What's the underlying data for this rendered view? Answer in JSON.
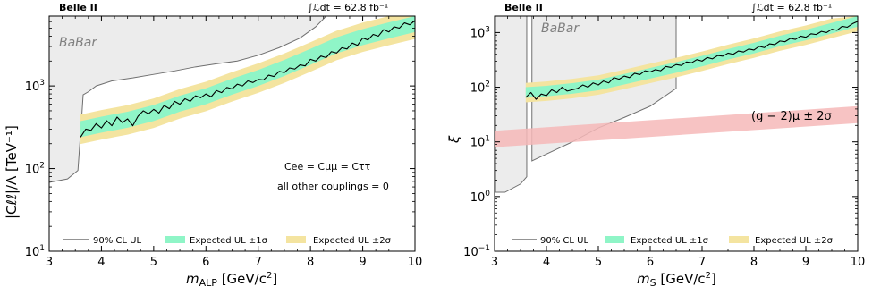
{
  "chart_data": [
    {
      "type": "line",
      "experiment": "Belle II",
      "luminosity_label": "∫ℒdt = 62.8 fb⁻¹",
      "xlabel": "m_ALP [GeV/c²]",
      "xlabel_main": "m",
      "xlabel_sub": "ALP",
      "xlabel_unit": " [GeV/c",
      "xlabel_unit_sup": "2",
      "xlabel_unit_close": "]",
      "ylabel": "|C_ℓℓ|/Λ [TeV⁻¹]",
      "ylabel_display": "|Cℓℓ|/Λ [TeV⁻¹]",
      "xlim": [
        3,
        10
      ],
      "ylim": [
        10,
        7000
      ],
      "yscale": "log",
      "x_ticks": [
        "3",
        "4",
        "5",
        "6",
        "7",
        "8",
        "9",
        "10"
      ],
      "y_ticks": [
        {
          "value": 10,
          "base": "10",
          "exp": "1"
        },
        {
          "value": 100,
          "base": "10",
          "exp": "2"
        },
        {
          "value": 1000,
          "base": "10",
          "exp": "3"
        }
      ],
      "annotations": [
        "C_ee = C_μμ = C_ττ",
        "all other couplings = 0"
      ],
      "annotation_display": [
        "Cee = Cμμ = Cττ",
        "all other couplings = 0"
      ],
      "region_label": "BaBar",
      "legend": [
        "90% CL UL",
        "Expected UL ±1σ",
        "Expected UL ±2σ"
      ],
      "babar_boundary": [
        [
          3.0,
          68
        ],
        [
          3.35,
          75
        ],
        [
          3.55,
          95
        ],
        [
          3.62,
          400
        ],
        [
          3.65,
          780
        ],
        [
          3.75,
          850
        ],
        [
          3.9,
          1000
        ],
        [
          4.2,
          1150
        ],
        [
          4.6,
          1250
        ],
        [
          5.0,
          1380
        ],
        [
          5.4,
          1520
        ],
        [
          5.8,
          1700
        ],
        [
          6.2,
          1850
        ],
        [
          6.6,
          2000
        ],
        [
          7.0,
          2350
        ],
        [
          7.4,
          2900
        ],
        [
          7.8,
          3800
        ],
        [
          8.1,
          5200
        ],
        [
          8.3,
          7000
        ]
      ],
      "expected_median": [
        [
          3.6,
          300
        ],
        [
          4.0,
          340
        ],
        [
          4.5,
          390
        ],
        [
          5.0,
          470
        ],
        [
          5.5,
          610
        ],
        [
          6.0,
          750
        ],
        [
          6.5,
          980
        ],
        [
          7.0,
          1250
        ],
        [
          7.5,
          1650
        ],
        [
          8.0,
          2250
        ],
        [
          8.5,
          3100
        ],
        [
          9.0,
          3900
        ],
        [
          9.5,
          4700
        ],
        [
          10.0,
          5600
        ]
      ],
      "observed_ul": [
        [
          3.6,
          240
        ],
        [
          3.7,
          300
        ],
        [
          3.8,
          290
        ],
        [
          3.9,
          350
        ],
        [
          4.0,
          310
        ],
        [
          4.1,
          380
        ],
        [
          4.2,
          330
        ],
        [
          4.3,
          420
        ],
        [
          4.4,
          360
        ],
        [
          4.5,
          400
        ],
        [
          4.6,
          330
        ],
        [
          4.7,
          430
        ],
        [
          4.8,
          500
        ],
        [
          4.9,
          460
        ],
        [
          5.0,
          520
        ],
        [
          5.1,
          470
        ],
        [
          5.2,
          580
        ],
        [
          5.3,
          530
        ],
        [
          5.4,
          650
        ],
        [
          5.5,
          600
        ],
        [
          5.6,
          700
        ],
        [
          5.7,
          650
        ],
        [
          5.8,
          760
        ],
        [
          5.9,
          720
        ],
        [
          6.0,
          800
        ],
        [
          6.1,
          740
        ],
        [
          6.2,
          880
        ],
        [
          6.3,
          830
        ],
        [
          6.4,
          960
        ],
        [
          6.5,
          920
        ],
        [
          6.6,
          1050
        ],
        [
          6.7,
          1000
        ],
        [
          6.8,
          1150
        ],
        [
          6.9,
          1100
        ],
        [
          7.0,
          1200
        ],
        [
          7.1,
          1180
        ],
        [
          7.2,
          1350
        ],
        [
          7.3,
          1300
        ],
        [
          7.4,
          1500
        ],
        [
          7.5,
          1450
        ],
        [
          7.6,
          1650
        ],
        [
          7.7,
          1600
        ],
        [
          7.8,
          1800
        ],
        [
          7.9,
          1750
        ],
        [
          8.0,
          2100
        ],
        [
          8.1,
          2000
        ],
        [
          8.2,
          2300
        ],
        [
          8.3,
          2200
        ],
        [
          8.4,
          2600
        ],
        [
          8.5,
          2500
        ],
        [
          8.6,
          2900
        ],
        [
          8.7,
          2800
        ],
        [
          8.8,
          3300
        ],
        [
          8.9,
          3100
        ],
        [
          9.0,
          3800
        ],
        [
          9.1,
          3600
        ],
        [
          9.2,
          4200
        ],
        [
          9.3,
          4000
        ],
        [
          9.4,
          4800
        ],
        [
          9.5,
          4500
        ],
        [
          9.6,
          5200
        ],
        [
          9.7,
          5000
        ],
        [
          9.8,
          5800
        ],
        [
          9.9,
          5500
        ],
        [
          10.0,
          6200
        ]
      ]
    },
    {
      "type": "line",
      "experiment": "Belle II",
      "luminosity_label": "∫ℒdt = 62.8 fb⁻¹",
      "xlabel": "m_S [GeV/c²]",
      "xlabel_main": "m",
      "xlabel_sub": "S",
      "xlabel_unit": " [GeV/c",
      "xlabel_unit_sup": "2",
      "xlabel_unit_close": "]",
      "ylabel": "ξ",
      "xlim": [
        3,
        10
      ],
      "ylim": [
        0.1,
        2000
      ],
      "yscale": "log",
      "x_ticks": [
        "3",
        "4",
        "5",
        "6",
        "7",
        "8",
        "9",
        "10"
      ],
      "y_ticks": [
        {
          "value": 0.1,
          "base": "10",
          "exp": "−1"
        },
        {
          "value": 1,
          "base": "10",
          "exp": "0"
        },
        {
          "value": 10,
          "base": "10",
          "exp": "1"
        },
        {
          "value": 100,
          "base": "10",
          "exp": "2"
        },
        {
          "value": 1000,
          "base": "10",
          "exp": "3"
        }
      ],
      "region_label": "BaBar",
      "band_label": "(g − 2)μ ± 2σ",
      "legend": [
        "90% CL UL",
        "Expected UL ±1σ",
        "Expected UL ±2σ"
      ],
      "babar_boundary": [
        [
          3.02,
          2000
        ],
        [
          3.02,
          1.2
        ],
        [
          3.2,
          1.2
        ],
        [
          3.5,
          1.7
        ],
        [
          3.62,
          2.3
        ],
        [
          3.62,
          2000
        ],
        [
          3.72,
          2000
        ],
        [
          3.72,
          4.5
        ],
        [
          4.0,
          6
        ],
        [
          4.5,
          10
        ],
        [
          5.0,
          18
        ],
        [
          5.5,
          28
        ],
        [
          6.0,
          45
        ],
        [
          6.5,
          95
        ],
        [
          6.5,
          2000
        ]
      ],
      "gm2_band": {
        "x": [
          3.0,
          10.0
        ],
        "lower": [
          8,
          22
        ],
        "upper": [
          16,
          45
        ]
      },
      "expected_median": [
        [
          3.6,
          80
        ],
        [
          4.0,
          85
        ],
        [
          4.5,
          95
        ],
        [
          5.0,
          110
        ],
        [
          5.5,
          140
        ],
        [
          6.0,
          180
        ],
        [
          6.5,
          230
        ],
        [
          7.0,
          300
        ],
        [
          7.5,
          400
        ],
        [
          8.0,
          520
        ],
        [
          8.5,
          700
        ],
        [
          9.0,
          900
        ],
        [
          9.5,
          1200
        ],
        [
          10.0,
          1600
        ]
      ],
      "observed_ul": [
        [
          3.6,
          65
        ],
        [
          3.7,
          80
        ],
        [
          3.8,
          60
        ],
        [
          3.9,
          75
        ],
        [
          4.0,
          70
        ],
        [
          4.1,
          90
        ],
        [
          4.2,
          80
        ],
        [
          4.3,
          100
        ],
        [
          4.4,
          85
        ],
        [
          4.5,
          90
        ],
        [
          4.6,
          95
        ],
        [
          4.7,
          110
        ],
        [
          4.8,
          100
        ],
        [
          4.9,
          120
        ],
        [
          5.0,
          110
        ],
        [
          5.1,
          130
        ],
        [
          5.2,
          120
        ],
        [
          5.3,
          150
        ],
        [
          5.4,
          140
        ],
        [
          5.5,
          160
        ],
        [
          5.6,
          150
        ],
        [
          5.7,
          180
        ],
        [
          5.8,
          170
        ],
        [
          5.9,
          200
        ],
        [
          6.0,
          190
        ],
        [
          6.1,
          210
        ],
        [
          6.2,
          200
        ],
        [
          6.3,
          240
        ],
        [
          6.4,
          230
        ],
        [
          6.5,
          260
        ],
        [
          6.6,
          250
        ],
        [
          6.7,
          290
        ],
        [
          6.8,
          280
        ],
        [
          6.9,
          320
        ],
        [
          7.0,
          300
        ],
        [
          7.1,
          350
        ],
        [
          7.2,
          330
        ],
        [
          7.3,
          380
        ],
        [
          7.4,
          370
        ],
        [
          7.5,
          420
        ],
        [
          7.6,
          400
        ],
        [
          7.7,
          460
        ],
        [
          7.8,
          440
        ],
        [
          7.9,
          500
        ],
        [
          8.0,
          480
        ],
        [
          8.1,
          560
        ],
        [
          8.2,
          530
        ],
        [
          8.3,
          620
        ],
        [
          8.4,
          600
        ],
        [
          8.5,
          700
        ],
        [
          8.6,
          680
        ],
        [
          8.7,
          780
        ],
        [
          8.8,
          750
        ],
        [
          8.9,
          860
        ],
        [
          9.0,
          820
        ],
        [
          9.1,
          950
        ],
        [
          9.2,
          920
        ],
        [
          9.3,
          1050
        ],
        [
          9.4,
          1000
        ],
        [
          9.5,
          1150
        ],
        [
          9.6,
          1100
        ],
        [
          9.7,
          1300
        ],
        [
          9.8,
          1250
        ],
        [
          9.9,
          1450
        ],
        [
          10.0,
          1600
        ]
      ]
    }
  ],
  "colors": {
    "babar_fill": "#ececec",
    "babar_line": "#6f6f6f",
    "band_1sigma": "#8ff5c7",
    "band_2sigma": "#f4e4a0",
    "observed_line": "#000000",
    "gm2_band": "#f6b8b8"
  }
}
